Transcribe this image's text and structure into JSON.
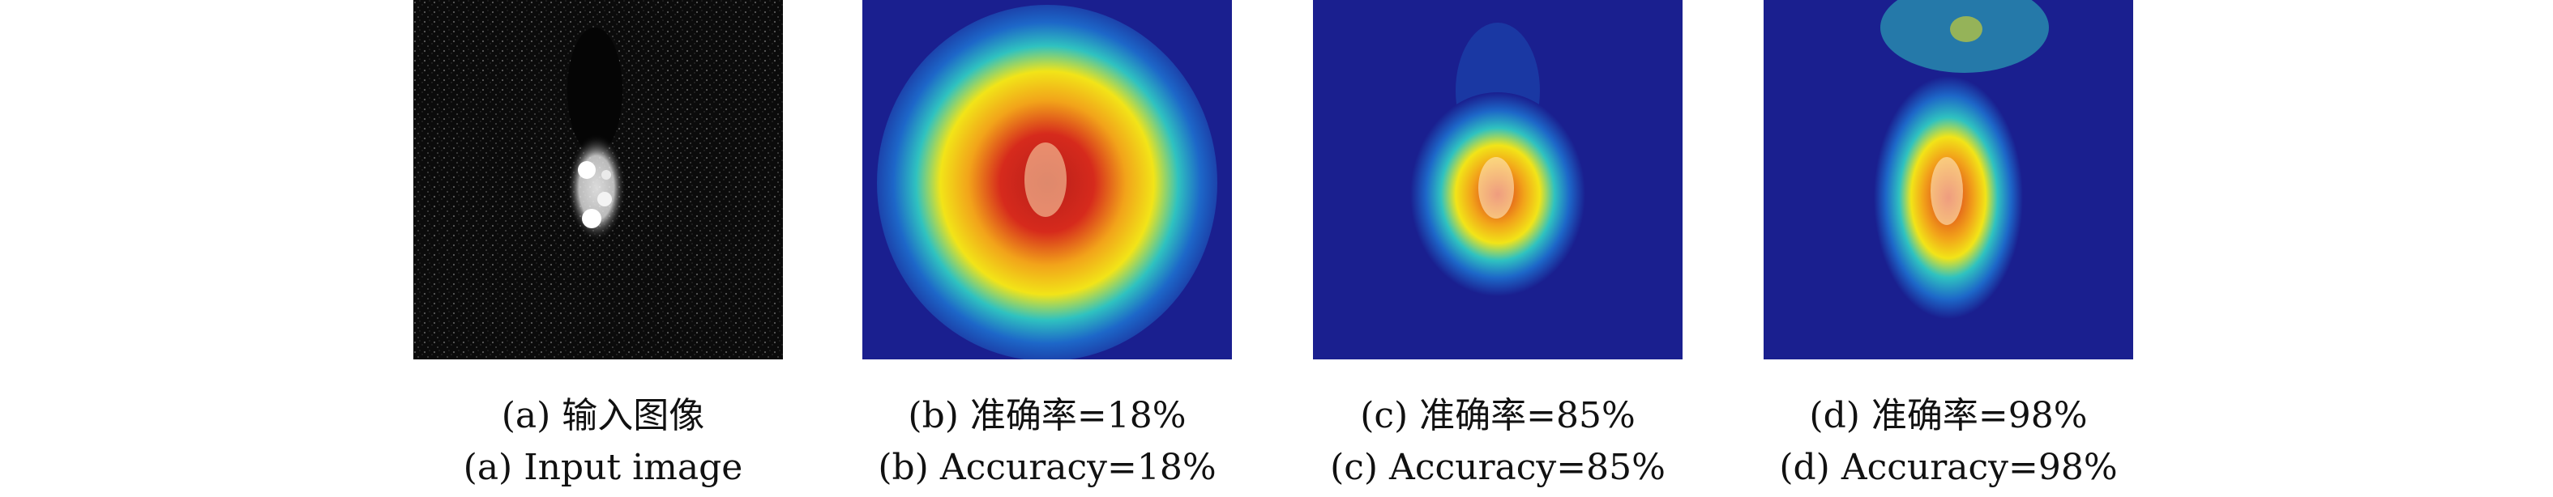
{
  "figure": {
    "panels": [
      {
        "id": "a",
        "kind": "grayscale",
        "caption_zh": "(a) 输入图像",
        "caption_en": "(a) Input image"
      },
      {
        "id": "b",
        "kind": "heatmap",
        "caption_zh": "(b) 准确率=18%",
        "caption_en": "(b) Accuracy=18%"
      },
      {
        "id": "c",
        "kind": "heatmap",
        "caption_zh": "(c) 准确率=85%",
        "caption_en": "(c) Accuracy=85%"
      },
      {
        "id": "d",
        "kind": "heatmap",
        "caption_zh": "(d) 准确率=98%",
        "caption_en": "(d) Accuracy=98%"
      }
    ],
    "colors": {
      "heatmap_background": "#1a1f8f",
      "heatmap_hot": "#d62a1c",
      "heatmap_warm": "#f2e418",
      "heatmap_mid": "#2fc2c0",
      "target_highlight": "#fff2c8",
      "input_background": "#0b0b0b"
    }
  }
}
